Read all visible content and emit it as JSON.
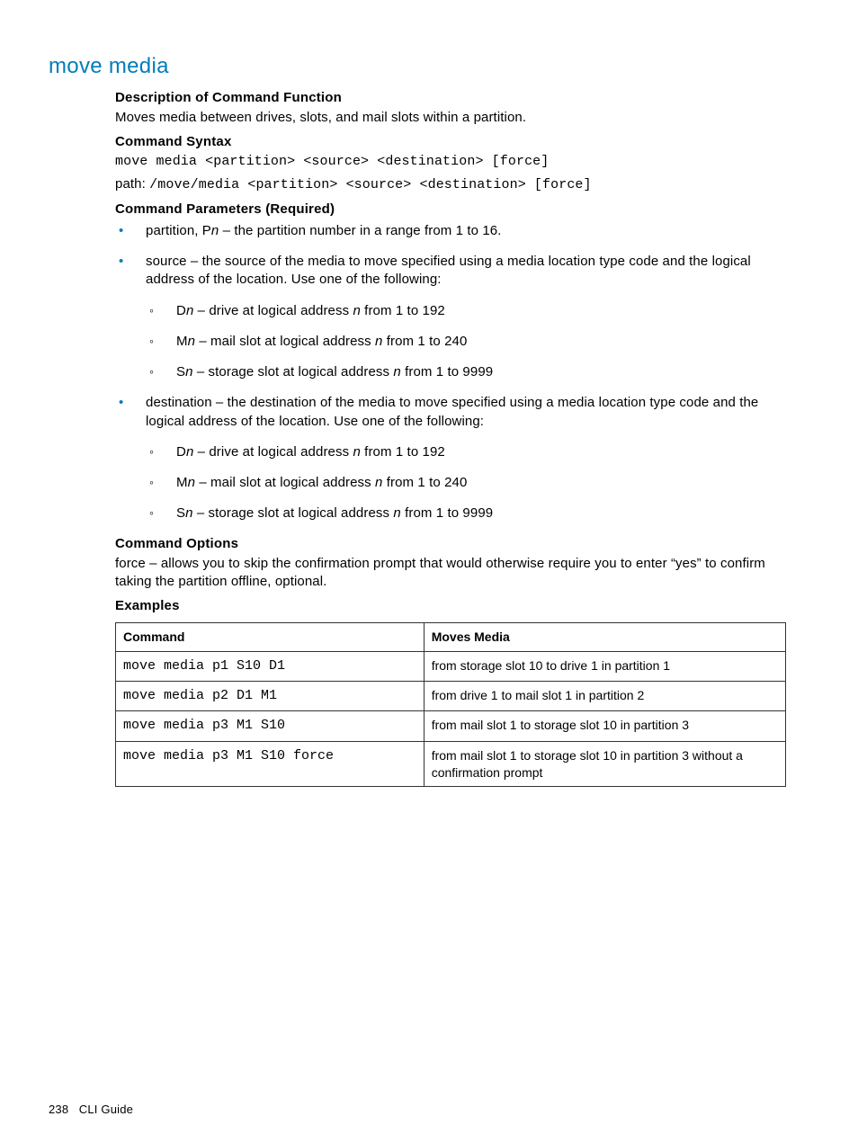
{
  "page_title": "move media",
  "sections": {
    "desc_head": "Description of Command Function",
    "desc_text": "Moves media between drives, slots, and mail slots within a partition.",
    "syntax_head": "Command Syntax",
    "syntax_line": "move media <partition> <source> <destination> [force]",
    "path_label": "path: ",
    "path_line": "/move/media <partition> <source> <destination> [force]",
    "params_head": "Command Parameters (Required)",
    "params": [
      {
        "pre": "partition, P",
        "var": "n",
        "post": " – the partition number in a range from 1 to 16."
      },
      {
        "pre": "source – the source of the media to move specified using a media location type code and the logical address of the location. Use one of the following:",
        "sub": [
          {
            "p1": "D",
            "v1": "n",
            "p2": " – drive at logical address ",
            "v2": "n",
            "p3": " from 1 to 192"
          },
          {
            "p1": "M",
            "v1": "n",
            "p2": " – mail slot at logical address ",
            "v2": "n",
            "p3": " from 1 to 240"
          },
          {
            "p1": "S",
            "v1": "n",
            "p2": " – storage slot at logical address ",
            "v2": "n",
            "p3": " from 1 to 9999"
          }
        ]
      },
      {
        "pre": "destination – the destination of the media to move specified using a media location type code and the logical address of the location. Use one of the following:",
        "sub": [
          {
            "p1": "D",
            "v1": "n",
            "p2": " – drive at logical address ",
            "v2": "n",
            "p3": " from 1 to 192"
          },
          {
            "p1": "M",
            "v1": "n",
            "p2": " – mail slot at logical address ",
            "v2": "n",
            "p3": " from 1 to 240"
          },
          {
            "p1": "S",
            "v1": "n",
            "p2": " – storage slot at logical address ",
            "v2": "n",
            "p3": " from 1 to 9999"
          }
        ]
      }
    ],
    "options_head": "Command Options",
    "options_text": "force – allows you to skip the confirmation prompt that would otherwise require you to enter “yes” to confirm taking the partition offline, optional.",
    "examples_head": "Examples",
    "examples_table": {
      "columns": [
        "Command",
        "Moves Media"
      ],
      "rows": [
        [
          "move media p1 S10 D1",
          "from storage slot 10 to drive 1 in partition 1"
        ],
        [
          "move media p2 D1 M1",
          "from drive 1 to mail slot 1 in partition 2"
        ],
        [
          "move media p3 M1 S10",
          "from mail slot 1 to storage slot 10 in partition 3"
        ],
        [
          "move media p3 M1 S10 force",
          "from mail slot 1 to storage slot 10 in partition 3 without a confirmation prompt"
        ]
      ]
    }
  },
  "footer": {
    "page_num": "238",
    "label": "CLI Guide"
  },
  "style": {
    "accent_color": "#007dba",
    "text_color": "#000000",
    "bg_color": "#ffffff",
    "mono_font": "Courier New",
    "body_font": "Arial",
    "body_fontsize": 15,
    "title_fontsize": 24,
    "table_border_color": "#333333"
  }
}
